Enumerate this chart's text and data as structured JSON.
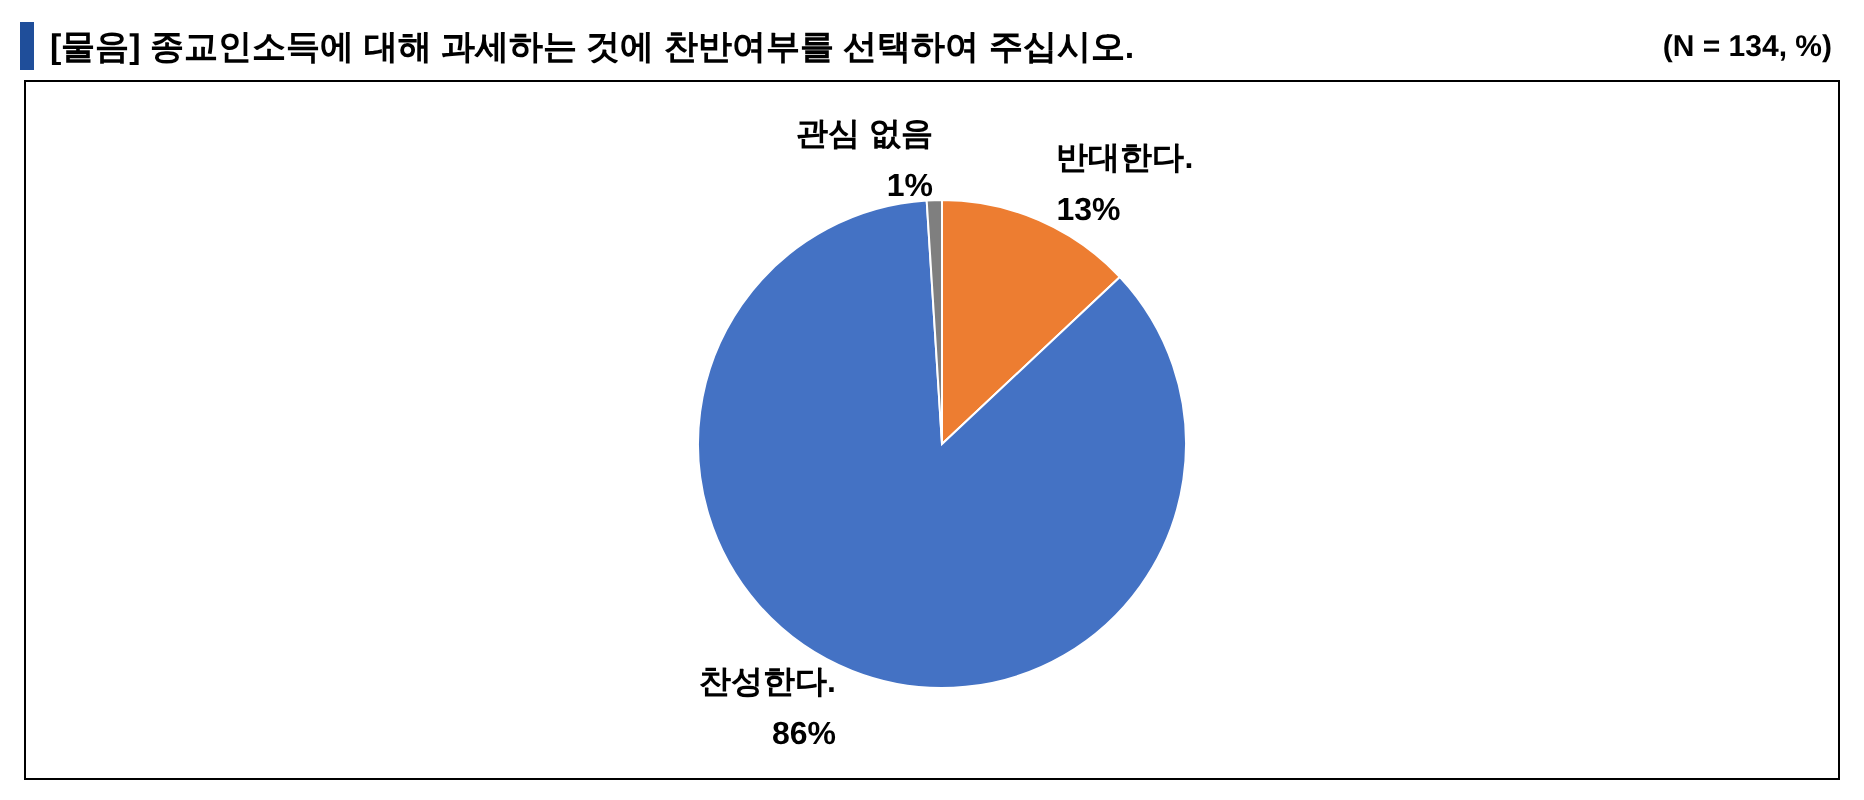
{
  "chart_data": {
    "type": "pie",
    "title": "[물음] 종교인소득에 대해 과세하는 것에 찬반여부를 선택하여 주십시오.",
    "subtitle": "(N = 134, %)",
    "categories": [
      "반대한다.",
      "찬성한다.",
      "관심 없음"
    ],
    "values": [
      13,
      86,
      1
    ],
    "value_labels": [
      "13%",
      "86%",
      "1%"
    ],
    "colors": [
      "#ed7d31",
      "#4472c4",
      "#7f7f7f"
    ],
    "legend": false
  }
}
